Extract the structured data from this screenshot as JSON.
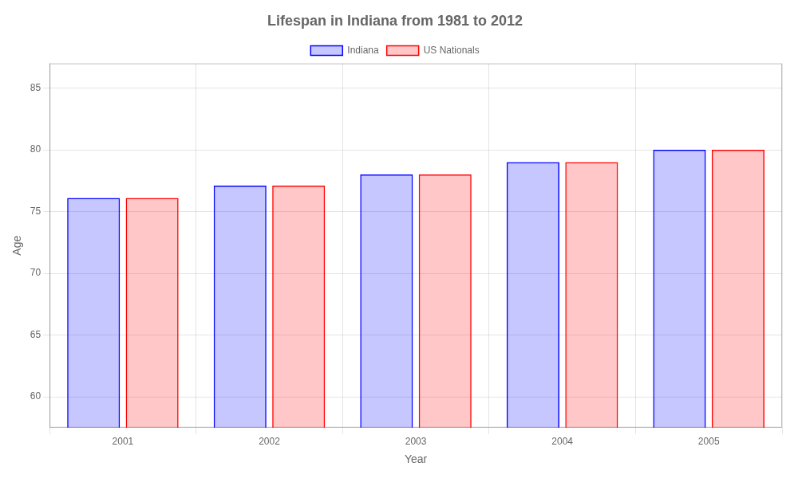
{
  "chart_data": {
    "type": "bar",
    "title": "Lifespan in Indiana from 1981 to 2012",
    "xlabel": "Year",
    "ylabel": "Age",
    "categories": [
      "2001",
      "2002",
      "2003",
      "2004",
      "2005"
    ],
    "series": [
      {
        "name": "Indiana",
        "color": "#0000ff",
        "values": [
          76.1,
          77.1,
          78.0,
          79.0,
          80.0
        ]
      },
      {
        "name": "US Nationals",
        "color": "#ff0000",
        "values": [
          76.1,
          77.1,
          78.0,
          79.0,
          80.0
        ]
      }
    ],
    "ylim": [
      57.5,
      87
    ],
    "yticks": [
      60,
      65,
      70,
      75,
      80,
      85
    ],
    "grid": true,
    "legend": "top"
  }
}
